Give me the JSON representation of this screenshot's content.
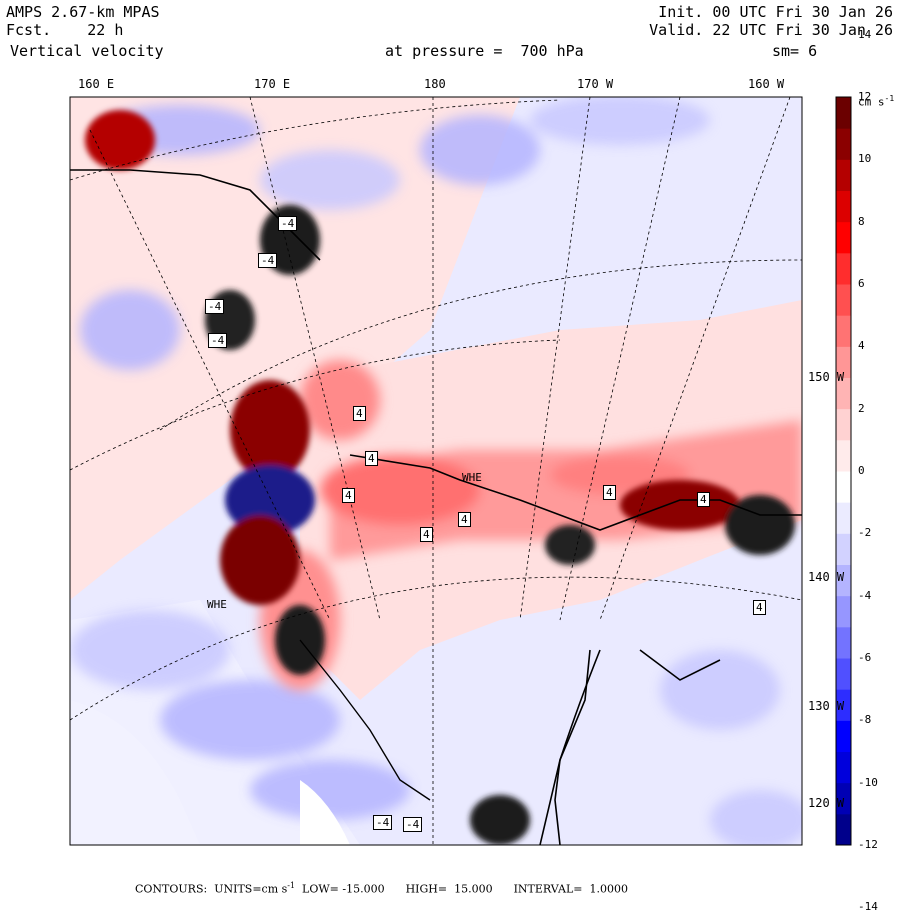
{
  "header": {
    "model": "AMPS 2.67-km MPAS",
    "forecast": "Fcst.    22 h",
    "field": "Vertical velocity",
    "init": "Init. 00 UTC Fri 30 Jan 26",
    "valid": "Valid. 22 UTC Fri 30 Jan 26",
    "level": "at pressure =  700 hPa",
    "smoothing": "sm= 6"
  },
  "lon_labels": [
    "160 E",
    "170 E",
    "180",
    "170 W",
    "160 W"
  ],
  "lat_labels": [
    "150 W",
    "140 W",
    "130 W",
    "120 W"
  ],
  "station_labels": [
    "WHE",
    "WHE"
  ],
  "colorbar": {
    "units": "cm s",
    "units_exp": "-1",
    "tick_labels": [
      "14",
      "12",
      "10",
      "8",
      "6",
      "4",
      "2",
      "0",
      "-2",
      "-4",
      "-6",
      "-8",
      "-10",
      "-12",
      "-14"
    ],
    "colors": [
      "#00008b",
      "#0000b4",
      "#0000dc",
      "#0000ff",
      "#2d2dff",
      "#5050ff",
      "#7373ff",
      "#9696ff",
      "#b4b4ff",
      "#d2d2ff",
      "#ebebff",
      "#ffffff",
      "#ffebeb",
      "#ffd2d2",
      "#ffb4b4",
      "#ff9696",
      "#ff7373",
      "#ff5050",
      "#ff2d2d",
      "#ff0000",
      "#dc0000",
      "#b40000",
      "#8b0000",
      "#6b0000"
    ]
  },
  "contour_labels": [
    "4",
    "4",
    "4",
    "4",
    "4",
    "4",
    "4",
    "4",
    "-4",
    "-4",
    "-4",
    "-4",
    "-4",
    "-4"
  ],
  "footer": {
    "contours": "CONTOURS:  UNITS=cm s",
    "exp": "-1",
    "rest": "  LOW= -15.000      HIGH=  15.000      INTERVAL=  1.0000"
  }
}
